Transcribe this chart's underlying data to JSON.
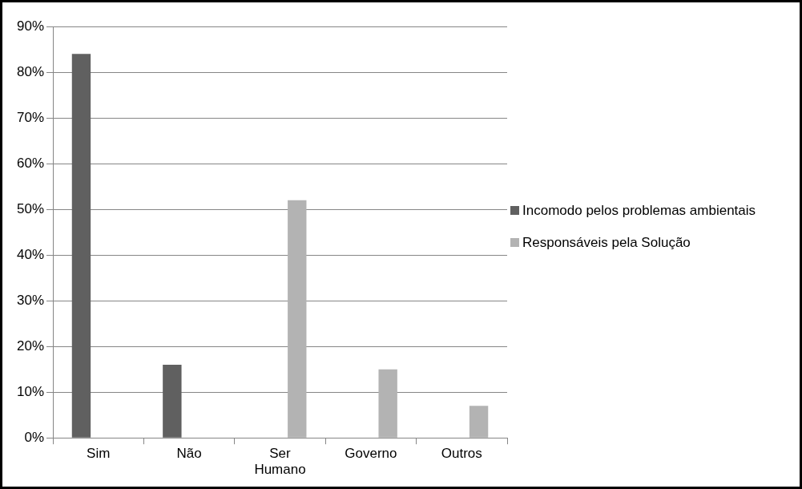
{
  "chart_data": {
    "type": "bar",
    "categories": [
      "Sim",
      "Não",
      "Ser Humano",
      "Governo",
      "Outros"
    ],
    "series": [
      {
        "name": "Incomodo pelos problemas ambientais",
        "color": "#606060",
        "values": [
          84,
          16,
          null,
          null,
          null
        ]
      },
      {
        "name": "Responsáveis pela Solução",
        "color": "#b3b3b3",
        "values": [
          null,
          null,
          52,
          15,
          7
        ]
      }
    ],
    "ylim": [
      0,
      90
    ],
    "yticks": [
      {
        "value": 0,
        "label": "0%"
      },
      {
        "value": 10,
        "label": "10%"
      },
      {
        "value": 20,
        "label": "20%"
      },
      {
        "value": 30,
        "label": "30%"
      },
      {
        "value": 40,
        "label": "40%"
      },
      {
        "value": 50,
        "label": "50%"
      },
      {
        "value": 60,
        "label": "60%"
      },
      {
        "value": 70,
        "label": "70%"
      },
      {
        "value": 80,
        "label": "80%"
      },
      {
        "value": 90,
        "label": "90%"
      }
    ],
    "grid": "y",
    "legend": "right"
  }
}
